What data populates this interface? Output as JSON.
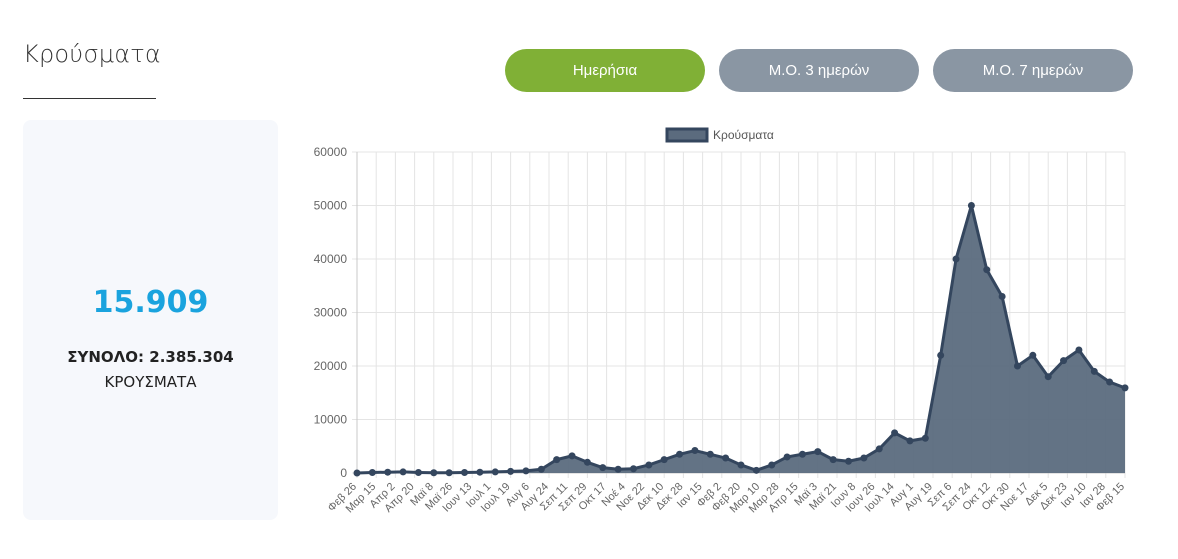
{
  "header": {
    "title": "Κρούσματα"
  },
  "buttons": {
    "daily": "Ημερήσια",
    "ma3": "Μ.Ο. 3 ημερών",
    "ma7": "Μ.Ο. 7 ημερών"
  },
  "summary": {
    "value": "15.909",
    "total": "ΣΥΝΟΛΟ: 2.385.304",
    "caption": "ΚΡΟΥΣΜΑΤΑ"
  },
  "colors": {
    "accent_green": "#80b036",
    "button_gray": "#8a96a3",
    "value_blue": "#1aa3de",
    "series_line": "#34465e",
    "series_fill": "#5b6b7e"
  },
  "chart_data": {
    "type": "area",
    "legend": "Κρούσματα",
    "legend_position": "top-center",
    "grid": true,
    "ylim": [
      0,
      60000
    ],
    "y_ticks": [
      "0",
      "10000",
      "20000",
      "30000",
      "40000",
      "50000",
      "60000"
    ],
    "x_tick_labels": [
      "Φεβ 26",
      "Μαρ 15",
      "Απρ 2",
      "Απρ 20",
      "Μαϊ 8",
      "Μαϊ 26",
      "Ιουν 13",
      "Ιουλ 1",
      "Ιουλ 19",
      "Αυγ 6",
      "Αυγ 24",
      "Σεπ 11",
      "Σεπ 29",
      "Οκτ 17",
      "Νοέ 4",
      "Νοε 22",
      "Δεκ 10",
      "Δεκ 28",
      "Ιαν 15",
      "Φεβ 2",
      "Φεβ 20",
      "Μαρ 10",
      "Μαρ 28",
      "Απρ 15",
      "Μαϊ 3",
      "Μαϊ 21",
      "Ιουν 8",
      "Ιουν 26",
      "Ιουλ 14",
      "Αυγ 1",
      "Αυγ 19",
      "Σεπ 6",
      "Σεπ 24",
      "Οκτ 12",
      "Οκτ 30",
      "Νοε 17",
      "Δεκ 5",
      "Δεκ 23",
      "Ιαν 10",
      "Ιαν 28",
      "Φεβ 15"
    ],
    "series": [
      {
        "name": "Κρούσματα",
        "values": [
          0,
          100,
          150,
          200,
          100,
          50,
          50,
          100,
          150,
          200,
          300,
          400,
          700,
          2500,
          3200,
          2000,
          1000,
          700,
          800,
          1500,
          2500,
          3500,
          4200,
          3500,
          2800,
          1500,
          500,
          1500,
          3000,
          3500,
          4000,
          2500,
          2200,
          2800,
          4500,
          7500,
          6000,
          6500,
          22000,
          40000,
          50000,
          38000,
          33000,
          20000,
          22000,
          18000,
          21000,
          23000,
          19000,
          17000,
          15909
        ]
      }
    ]
  }
}
